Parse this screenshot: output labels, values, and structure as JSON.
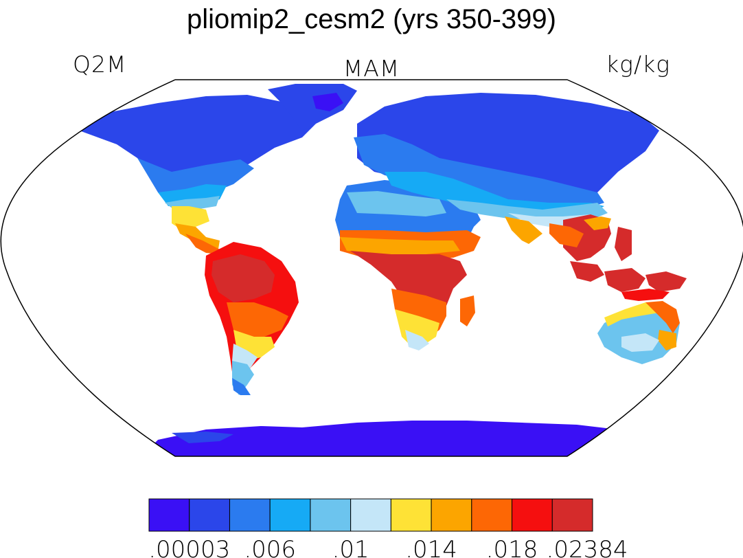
{
  "title": "pliomip2_cesm2 (yrs 350-399)",
  "variable": "Q2M",
  "season": "MAM",
  "units": "kg/kg",
  "colorbar": {
    "colors": [
      "#3a10f5",
      "#2b46ea",
      "#2b7bef",
      "#16aaf5",
      "#6cc4ee",
      "#c4e6f8",
      "#fee236",
      "#fca500",
      "#fd6705",
      "#f50f0f",
      "#d52b2b"
    ],
    "tick_labels": [
      ".00003",
      ".006",
      ".01",
      ".014",
      ".018",
      ".02384"
    ]
  },
  "colors": {
    "ocean": "#ffffff",
    "outline": "#000000"
  }
}
